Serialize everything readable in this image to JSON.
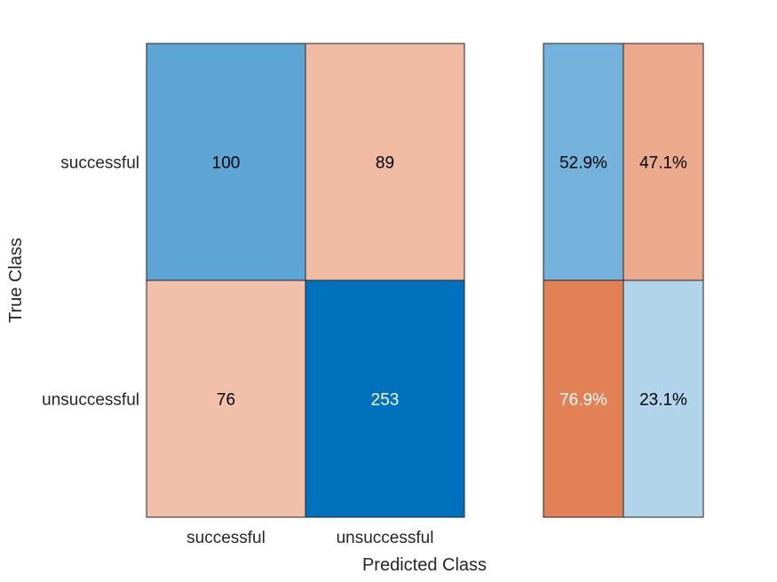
{
  "chart_data": {
    "type": "heatmap",
    "title": "",
    "xlabel": "Predicted Class",
    "ylabel": "True Class",
    "categories": [
      "successful",
      "unsuccessful"
    ],
    "true_classes": [
      "successful",
      "unsuccessful"
    ],
    "predicted_classes": [
      "successful",
      "unsuccessful"
    ],
    "counts": [
      [
        100,
        89
      ],
      [
        76,
        253
      ]
    ],
    "row_summary": [
      [
        "52.9%",
        "47.1%"
      ],
      [
        "76.9%",
        "23.1%"
      ]
    ],
    "colors": {
      "correct_max": "#0072bd",
      "incorrect_max": "#d95319",
      "background": "#ffffff"
    }
  }
}
